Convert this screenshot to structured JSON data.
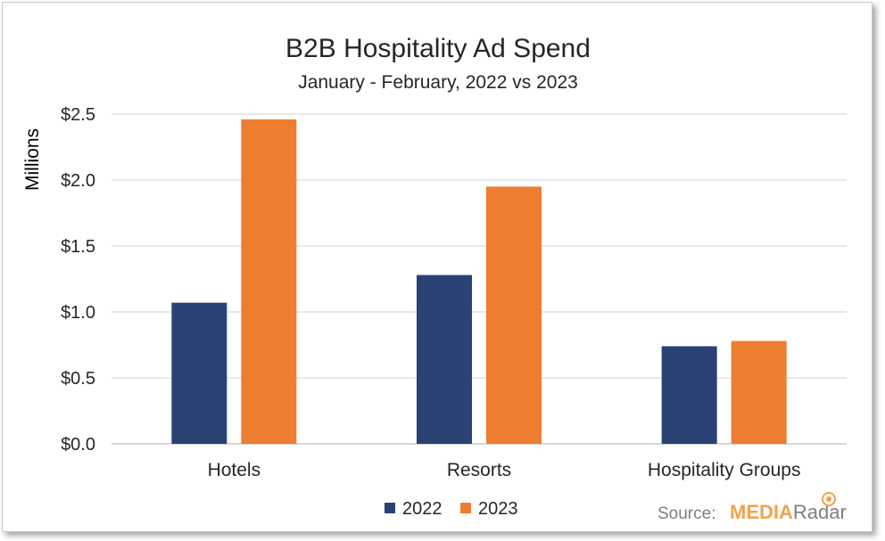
{
  "chart_data": {
    "type": "bar",
    "title": "B2B Hospitality Ad Spend",
    "subtitle": "January - February, 2022 vs 2023",
    "ylabel": "Millions",
    "xlabel": "",
    "categories": [
      "Hotels",
      "Resorts",
      "Hospitality Groups"
    ],
    "series": [
      {
        "name": "2022",
        "color": "#2a4273",
        "values": [
          1.07,
          1.28,
          0.74
        ]
      },
      {
        "name": "2023",
        "color": "#ed7d31",
        "values": [
          2.46,
          1.95,
          0.78
        ]
      }
    ],
    "ylim": [
      0,
      2.5
    ],
    "yticks": [
      0,
      0.5,
      1.0,
      1.5,
      2.0,
      2.5
    ],
    "ytick_labels": [
      "$0.0",
      "$0.5",
      "$1.0",
      "$1.5",
      "$2.0",
      "$2.5"
    ],
    "grid": true,
    "legend_position": "bottom"
  },
  "source": {
    "label": "Source:",
    "brand_part1": "MEDIA",
    "brand_part2": "Radar"
  }
}
